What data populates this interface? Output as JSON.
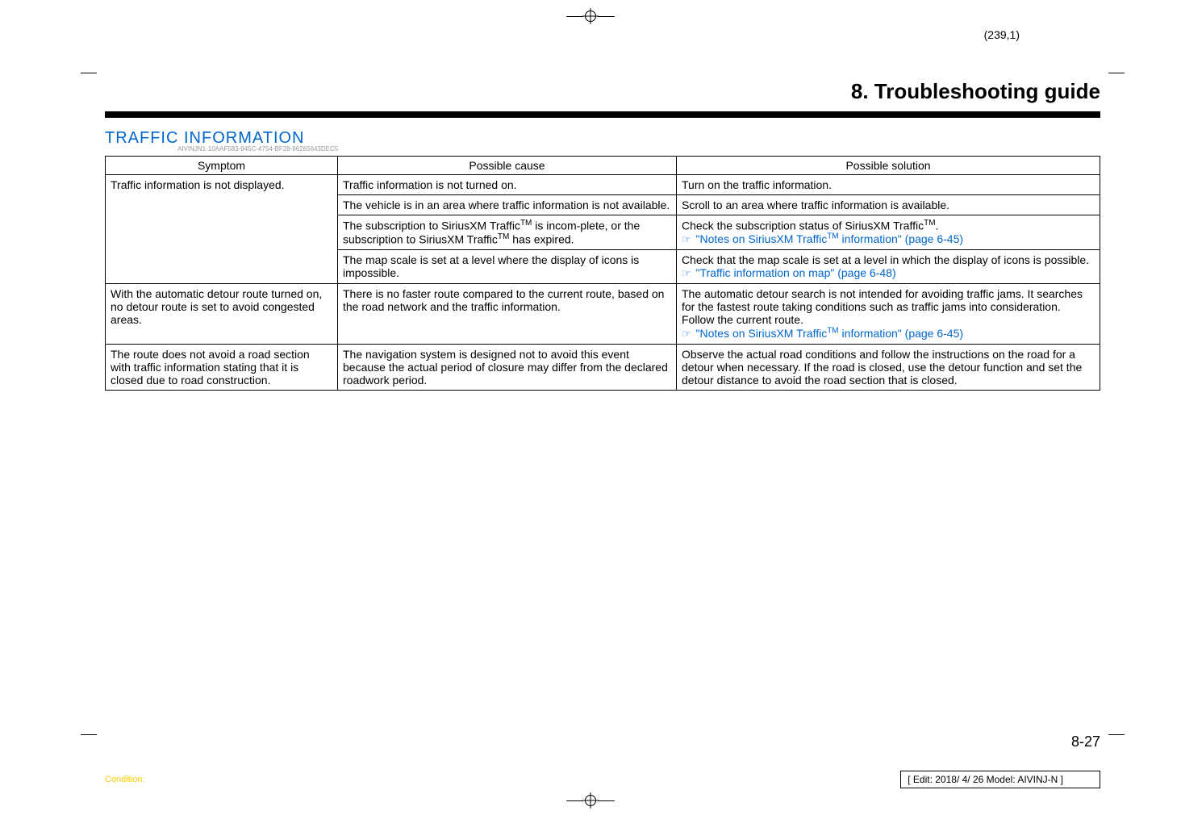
{
  "page_coord": "(239,1)",
  "page_title": "8. Troubleshooting guide",
  "section_heading": "TRAFFIC INFORMATION",
  "section_sub": "AIVINJN1-10AAF583-945C-4754-BF28-86265643DEC5",
  "headers": {
    "symptom": "Symptom",
    "cause": "Possible cause",
    "solution": "Possible solution"
  },
  "rows": [
    {
      "symptom": "Traffic information is not displayed.",
      "symptom_rowspan": 4,
      "cause": "Traffic information is not turned on.",
      "solution": "Turn on the traffic information."
    },
    {
      "cause": "The vehicle is in an area where traffic information is not available.",
      "solution": "Scroll to an area where traffic information is available."
    },
    {
      "cause_pre": "The subscription to SiriusXM Traffic",
      "cause_mid": " is incom-plete, or the subscription to SiriusXM Traffic",
      "cause_post": " has expired.",
      "solution_pre": "Check the subscription status of SiriusXM Traffic",
      "solution_post": ".",
      "ref_text": "\"Notes on SiriusXM Traffic",
      "ref_text2": " information\" (page 6-45)"
    },
    {
      "cause": "The map scale is set at a level where the display of icons is impossible.",
      "solution": "Check that the map scale is set at a level in which the display of icons is possible.",
      "ref_text_plain": "\"Traffic information on map\" (page 6-48)"
    },
    {
      "symptom": "With the automatic detour route turned on, no detour route is set to avoid congested areas.",
      "cause": "There is no faster route compared to the current route, based on the road network and the traffic information.",
      "solution": "The automatic detour search is not intended for avoiding traffic jams. It searches for the fastest route taking conditions such as traffic jams into consideration. Follow the current route.",
      "ref_text": "\"Notes on SiriusXM Traffic",
      "ref_text2": " information\" (page 6-45)"
    },
    {
      "symptom": "The route does not avoid a road section with traffic information stating that it is closed due to road construction.",
      "cause": "The navigation system is designed not to avoid this event because the actual period of closure may differ from the declared roadwork period.",
      "solution": "Observe the actual road conditions and follow the instructions on the road for a detour when necessary. If the road is closed, use the detour function and set the detour distance to avoid the road section that is closed."
    }
  ],
  "page_num": "8-27",
  "condition_label": "Condition:",
  "edit_info": "[ Edit: 2018/ 4/ 26    Model:  AIVINJ-N ]",
  "tm": "TM",
  "ref_icon": "☞"
}
